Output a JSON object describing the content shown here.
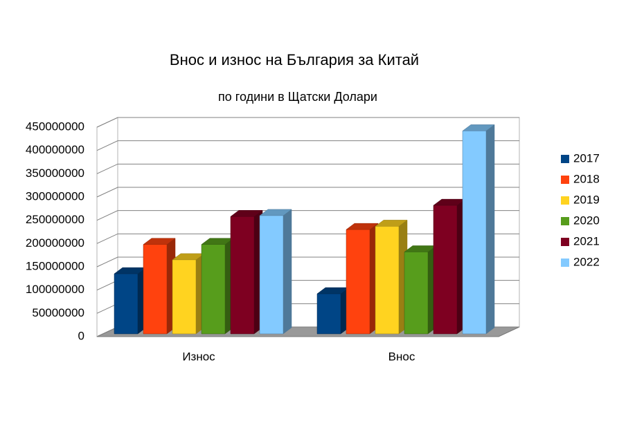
{
  "chart_data": {
    "type": "bar3d",
    "title": "Внос и износ на България за Китай",
    "subtitle": "по години в Щатски Долари",
    "categories": [
      "Износ",
      "Внос"
    ],
    "series": [
      {
        "name": "2017",
        "color": "#004586",
        "values": [
          135000000,
          92000000
        ]
      },
      {
        "name": "2018",
        "color": "#ff420e",
        "values": [
          198000000,
          230000000
        ]
      },
      {
        "name": "2019",
        "color": "#ffd320",
        "values": [
          165000000,
          237000000
        ]
      },
      {
        "name": "2020",
        "color": "#579d1c",
        "values": [
          198000000,
          182000000
        ]
      },
      {
        "name": "2021",
        "color": "#7e0021",
        "values": [
          258000000,
          282000000
        ]
      },
      {
        "name": "2022",
        "color": "#83caff",
        "values": [
          260000000,
          442000000
        ]
      }
    ],
    "ylim": [
      0,
      450000000
    ],
    "yticks": [
      0,
      50000000,
      100000000,
      150000000,
      200000000,
      250000000,
      300000000,
      350000000,
      400000000,
      450000000
    ],
    "grid": true,
    "legend": "right"
  }
}
